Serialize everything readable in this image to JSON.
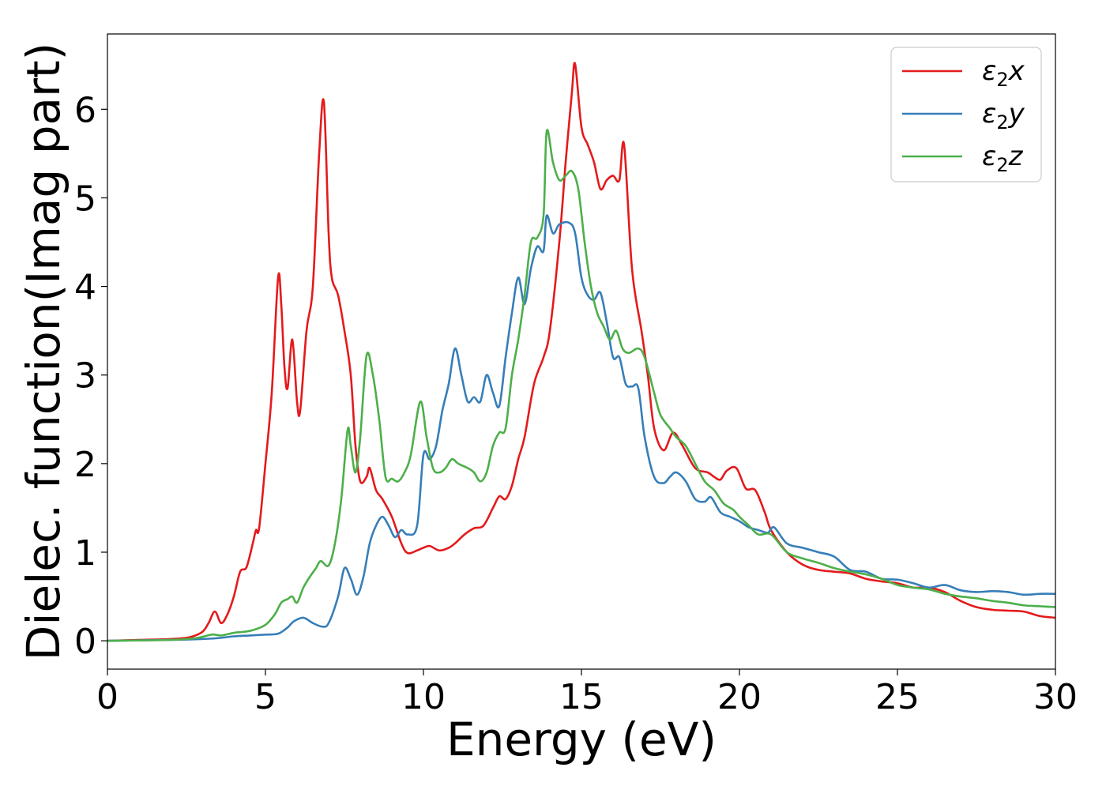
{
  "chart_data": {
    "type": "line",
    "xlabel": "Energy (eV)",
    "ylabel": "Dielec. function(Imag part)",
    "xlim": [
      0,
      30
    ],
    "ylim": [
      -0.32,
      6.85
    ],
    "xticks": [
      0,
      5,
      10,
      15,
      20,
      25,
      30
    ],
    "yticks": [
      0,
      1,
      2,
      3,
      4,
      5,
      6
    ],
    "grid": false,
    "legend": "top-right",
    "series": [
      {
        "name": "ε2x",
        "legend_symbol": "ε",
        "legend_sub": "2",
        "legend_axis": "x",
        "color": "#e41a1c",
        "points": [
          [
            0,
            0
          ],
          [
            1,
            0.01
          ],
          [
            2,
            0.02
          ],
          [
            2.6,
            0.04
          ],
          [
            3,
            0.1
          ],
          [
            3.2,
            0.2
          ],
          [
            3.4,
            0.33
          ],
          [
            3.6,
            0.2
          ],
          [
            3.8,
            0.3
          ],
          [
            4,
            0.5
          ],
          [
            4.2,
            0.78
          ],
          [
            4.4,
            0.83
          ],
          [
            4.6,
            1.1
          ],
          [
            4.7,
            1.25
          ],
          [
            4.8,
            1.27
          ],
          [
            5,
            2
          ],
          [
            5.2,
            2.8
          ],
          [
            5.4,
            4.1
          ],
          [
            5.5,
            3.8
          ],
          [
            5.6,
            3.1
          ],
          [
            5.7,
            2.85
          ],
          [
            5.85,
            3.4
          ],
          [
            6,
            2.7
          ],
          [
            6.1,
            2.6
          ],
          [
            6.3,
            3.5
          ],
          [
            6.5,
            4
          ],
          [
            6.7,
            5.5
          ],
          [
            6.85,
            6.08
          ],
          [
            7,
            4.6
          ],
          [
            7.1,
            4.1
          ],
          [
            7.3,
            3.9
          ],
          [
            7.5,
            3.5
          ],
          [
            7.7,
            3.0
          ],
          [
            7.85,
            2.2
          ],
          [
            8,
            1.8
          ],
          [
            8.2,
            1.85
          ],
          [
            8.3,
            1.95
          ],
          [
            8.5,
            1.7
          ],
          [
            8.7,
            1.6
          ],
          [
            9,
            1.4
          ],
          [
            9.3,
            1.1
          ],
          [
            9.5,
            0.99
          ],
          [
            9.8,
            1.02
          ],
          [
            10,
            1.05
          ],
          [
            10.2,
            1.07
          ],
          [
            10.5,
            1.02
          ],
          [
            10.8,
            1.05
          ],
          [
            11,
            1.1
          ],
          [
            11.3,
            1.2
          ],
          [
            11.6,
            1.27
          ],
          [
            11.9,
            1.3
          ],
          [
            12.2,
            1.5
          ],
          [
            12.4,
            1.63
          ],
          [
            12.6,
            1.6
          ],
          [
            12.8,
            1.75
          ],
          [
            13,
            2.05
          ],
          [
            13.2,
            2.3
          ],
          [
            13.5,
            2.9
          ],
          [
            13.8,
            3.2
          ],
          [
            14,
            3.5
          ],
          [
            14.3,
            4.5
          ],
          [
            14.5,
            5.4
          ],
          [
            14.7,
            6.2
          ],
          [
            14.8,
            6.51
          ],
          [
            15,
            5.8
          ],
          [
            15.2,
            5.6
          ],
          [
            15.4,
            5.4
          ],
          [
            15.6,
            5.1
          ],
          [
            15.8,
            5.2
          ],
          [
            16,
            5.25
          ],
          [
            16.2,
            5.2
          ],
          [
            16.35,
            5.6
          ],
          [
            16.6,
            4.2
          ],
          [
            16.9,
            3.5
          ],
          [
            17.1,
            3.0
          ],
          [
            17.3,
            2.4
          ],
          [
            17.6,
            2.15
          ],
          [
            17.9,
            2.35
          ],
          [
            18.2,
            2.2
          ],
          [
            18.6,
            1.95
          ],
          [
            19,
            1.9
          ],
          [
            19.2,
            1.85
          ],
          [
            19.4,
            1.82
          ],
          [
            19.6,
            1.92
          ],
          [
            19.9,
            1.95
          ],
          [
            20.2,
            1.72
          ],
          [
            20.5,
            1.7
          ],
          [
            20.8,
            1.45
          ],
          [
            21,
            1.25
          ],
          [
            21.5,
            1.0
          ],
          [
            22,
            0.86
          ],
          [
            22.5,
            0.8
          ],
          [
            23,
            0.78
          ],
          [
            23.5,
            0.76
          ],
          [
            24,
            0.7
          ],
          [
            24.5,
            0.67
          ],
          [
            25,
            0.65
          ],
          [
            25.5,
            0.6
          ],
          [
            26,
            0.6
          ],
          [
            26.5,
            0.55
          ],
          [
            27,
            0.45
          ],
          [
            27.5,
            0.38
          ],
          [
            28,
            0.35
          ],
          [
            28.5,
            0.34
          ],
          [
            29,
            0.33
          ],
          [
            29.5,
            0.28
          ],
          [
            30,
            0.26
          ]
        ]
      },
      {
        "name": "ε2y",
        "legend_symbol": "ε",
        "legend_sub": "2",
        "legend_axis": "y",
        "color": "#377eb8",
        "points": [
          [
            0,
            0
          ],
          [
            2,
            0.01
          ],
          [
            3,
            0.02
          ],
          [
            3.5,
            0.03
          ],
          [
            4,
            0.05
          ],
          [
            4.5,
            0.06
          ],
          [
            5,
            0.07
          ],
          [
            5.4,
            0.08
          ],
          [
            5.7,
            0.15
          ],
          [
            5.9,
            0.22
          ],
          [
            6.2,
            0.26
          ],
          [
            6.5,
            0.2
          ],
          [
            6.8,
            0.16
          ],
          [
            7,
            0.2
          ],
          [
            7.3,
            0.5
          ],
          [
            7.5,
            0.82
          ],
          [
            7.7,
            0.7
          ],
          [
            7.9,
            0.52
          ],
          [
            8.1,
            0.72
          ],
          [
            8.3,
            1.1
          ],
          [
            8.5,
            1.3
          ],
          [
            8.7,
            1.4
          ],
          [
            8.9,
            1.3
          ],
          [
            9.1,
            1.17
          ],
          [
            9.3,
            1.25
          ],
          [
            9.5,
            1.2
          ],
          [
            9.8,
            1.3
          ],
          [
            10,
            2.1
          ],
          [
            10.2,
            2.05
          ],
          [
            10.4,
            2.2
          ],
          [
            10.6,
            2.6
          ],
          [
            10.8,
            2.9
          ],
          [
            11,
            3.3
          ],
          [
            11.2,
            3.0
          ],
          [
            11.4,
            2.7
          ],
          [
            11.6,
            2.75
          ],
          [
            11.8,
            2.7
          ],
          [
            12,
            3.0
          ],
          [
            12.2,
            2.8
          ],
          [
            12.4,
            2.65
          ],
          [
            12.6,
            3.2
          ],
          [
            12.8,
            3.7
          ],
          [
            13,
            4.1
          ],
          [
            13.2,
            3.8
          ],
          [
            13.4,
            4.2
          ],
          [
            13.6,
            4.45
          ],
          [
            13.8,
            4.4
          ],
          [
            13.9,
            4.8
          ],
          [
            14.1,
            4.6
          ],
          [
            14.3,
            4.7
          ],
          [
            14.6,
            4.72
          ],
          [
            14.8,
            4.6
          ],
          [
            15,
            4.1
          ],
          [
            15.2,
            3.9
          ],
          [
            15.4,
            3.85
          ],
          [
            15.6,
            3.93
          ],
          [
            15.8,
            3.6
          ],
          [
            16,
            3.2
          ],
          [
            16.2,
            3.2
          ],
          [
            16.4,
            2.9
          ],
          [
            16.6,
            2.87
          ],
          [
            16.8,
            2.85
          ],
          [
            17,
            2.3
          ],
          [
            17.3,
            1.85
          ],
          [
            17.6,
            1.78
          ],
          [
            17.8,
            1.85
          ],
          [
            18,
            1.9
          ],
          [
            18.3,
            1.8
          ],
          [
            18.6,
            1.6
          ],
          [
            18.9,
            1.57
          ],
          [
            19.1,
            1.62
          ],
          [
            19.4,
            1.45
          ],
          [
            19.7,
            1.4
          ],
          [
            20,
            1.35
          ],
          [
            20.3,
            1.28
          ],
          [
            20.6,
            1.25
          ],
          [
            20.9,
            1.22
          ],
          [
            21.1,
            1.28
          ],
          [
            21.5,
            1.1
          ],
          [
            22,
            1.05
          ],
          [
            22.5,
            1.0
          ],
          [
            23,
            0.95
          ],
          [
            23.5,
            0.8
          ],
          [
            24,
            0.78
          ],
          [
            24.5,
            0.7
          ],
          [
            25,
            0.69
          ],
          [
            25.5,
            0.65
          ],
          [
            26,
            0.6
          ],
          [
            26.5,
            0.63
          ],
          [
            27,
            0.57
          ],
          [
            27.5,
            0.55
          ],
          [
            28,
            0.56
          ],
          [
            28.5,
            0.55
          ],
          [
            29,
            0.52
          ],
          [
            29.5,
            0.53
          ],
          [
            30,
            0.53
          ]
        ]
      },
      {
        "name": "ε2z",
        "legend_symbol": "ε",
        "legend_sub": "2",
        "legend_axis": "z",
        "color": "#4daf4a",
        "points": [
          [
            0,
            0
          ],
          [
            2,
            0.01
          ],
          [
            2.8,
            0.03
          ],
          [
            3.3,
            0.07
          ],
          [
            3.6,
            0.06
          ],
          [
            4,
            0.09
          ],
          [
            4.3,
            0.1
          ],
          [
            4.6,
            0.12
          ],
          [
            5,
            0.18
          ],
          [
            5.3,
            0.3
          ],
          [
            5.5,
            0.43
          ],
          [
            5.7,
            0.47
          ],
          [
            5.85,
            0.5
          ],
          [
            6,
            0.43
          ],
          [
            6.2,
            0.6
          ],
          [
            6.4,
            0.72
          ],
          [
            6.6,
            0.82
          ],
          [
            6.75,
            0.9
          ],
          [
            7,
            0.85
          ],
          [
            7.2,
            1.1
          ],
          [
            7.4,
            1.6
          ],
          [
            7.6,
            2.38
          ],
          [
            7.7,
            2.2
          ],
          [
            7.85,
            1.9
          ],
          [
            8,
            2.3
          ],
          [
            8.2,
            3.22
          ],
          [
            8.4,
            3.0
          ],
          [
            8.6,
            2.5
          ],
          [
            8.8,
            1.85
          ],
          [
            9,
            1.83
          ],
          [
            9.2,
            1.8
          ],
          [
            9.4,
            1.9
          ],
          [
            9.6,
            2.1
          ],
          [
            9.9,
            2.7
          ],
          [
            10.1,
            2.3
          ],
          [
            10.3,
            1.95
          ],
          [
            10.5,
            1.9
          ],
          [
            10.7,
            1.95
          ],
          [
            10.9,
            2.05
          ],
          [
            11.1,
            2.0
          ],
          [
            11.4,
            1.95
          ],
          [
            11.6,
            1.9
          ],
          [
            11.8,
            1.8
          ],
          [
            12,
            1.9
          ],
          [
            12.2,
            2.2
          ],
          [
            12.4,
            2.35
          ],
          [
            12.6,
            2.4
          ],
          [
            12.8,
            3.0
          ],
          [
            13,
            3.4
          ],
          [
            13.2,
            3.9
          ],
          [
            13.4,
            4.5
          ],
          [
            13.6,
            4.55
          ],
          [
            13.8,
            4.8
          ],
          [
            13.9,
            5.75
          ],
          [
            14.1,
            5.4
          ],
          [
            14.3,
            5.2
          ],
          [
            14.5,
            5.25
          ],
          [
            14.7,
            5.3
          ],
          [
            14.9,
            5.1
          ],
          [
            15.1,
            4.5
          ],
          [
            15.3,
            4.0
          ],
          [
            15.5,
            3.7
          ],
          [
            15.7,
            3.55
          ],
          [
            15.9,
            3.4
          ],
          [
            16.1,
            3.5
          ],
          [
            16.3,
            3.3
          ],
          [
            16.5,
            3.25
          ],
          [
            16.8,
            3.3
          ],
          [
            17,
            3.2
          ],
          [
            17.3,
            2.8
          ],
          [
            17.5,
            2.55
          ],
          [
            17.8,
            2.4
          ],
          [
            18,
            2.3
          ],
          [
            18.3,
            2.2
          ],
          [
            18.6,
            2.0
          ],
          [
            18.9,
            1.8
          ],
          [
            19.2,
            1.7
          ],
          [
            19.5,
            1.55
          ],
          [
            19.8,
            1.48
          ],
          [
            20,
            1.4
          ],
          [
            20.3,
            1.3
          ],
          [
            20.6,
            1.2
          ],
          [
            21,
            1.2
          ],
          [
            21.5,
            1.0
          ],
          [
            22,
            0.93
          ],
          [
            22.5,
            0.88
          ],
          [
            23,
            0.82
          ],
          [
            23.5,
            0.78
          ],
          [
            24,
            0.75
          ],
          [
            24.5,
            0.7
          ],
          [
            25,
            0.63
          ],
          [
            25.5,
            0.6
          ],
          [
            26,
            0.58
          ],
          [
            26.5,
            0.53
          ],
          [
            27,
            0.5
          ],
          [
            27.5,
            0.48
          ],
          [
            28,
            0.45
          ],
          [
            28.5,
            0.43
          ],
          [
            29,
            0.4
          ],
          [
            29.5,
            0.39
          ],
          [
            30,
            0.38
          ]
        ]
      }
    ]
  }
}
